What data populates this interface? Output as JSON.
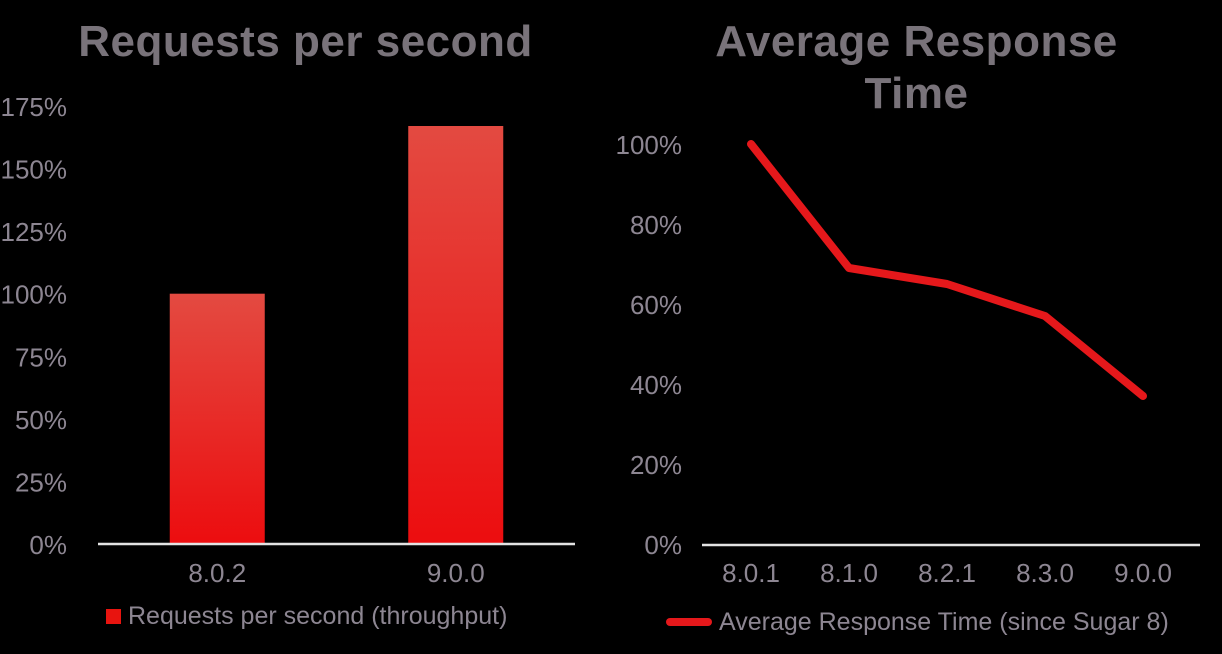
{
  "canvas": {
    "background": "#000000"
  },
  "colors": {
    "background": "#000000",
    "title": "#79737a",
    "labels": "#8d8692",
    "axis_line": "#e3e3e3",
    "red": "#e5181b",
    "bar_top": "#e34a41",
    "bar_bottom": "#ec0d0f",
    "legend_square": "#e8140f"
  },
  "chart_data": [
    {
      "type": "bar",
      "title": "Requests per second",
      "categories": [
        "8.0.2",
        "9.0.0"
      ],
      "values": [
        100,
        167
      ],
      "series_name": "Requests per second (throughput)",
      "xlabel": "",
      "ylabel": "",
      "ylim": [
        0,
        175
      ],
      "ytick_step": 25,
      "ytick_suffix": "%",
      "grid": false,
      "legend_position": "bottom-left"
    },
    {
      "type": "line",
      "title": "Average Response Time",
      "categories": [
        "8.0.1",
        "8.1.0",
        "8.2.1",
        "8.3.0",
        "9.0.0"
      ],
      "values": [
        100,
        69,
        65,
        57,
        37
      ],
      "series_name": "Average Response Time (since Sugar 8)",
      "xlabel": "",
      "ylabel": "",
      "ylim": [
        0,
        100
      ],
      "ytick_step": 20,
      "ytick_suffix": "%",
      "grid": false,
      "legend_position": "bottom-left"
    }
  ]
}
